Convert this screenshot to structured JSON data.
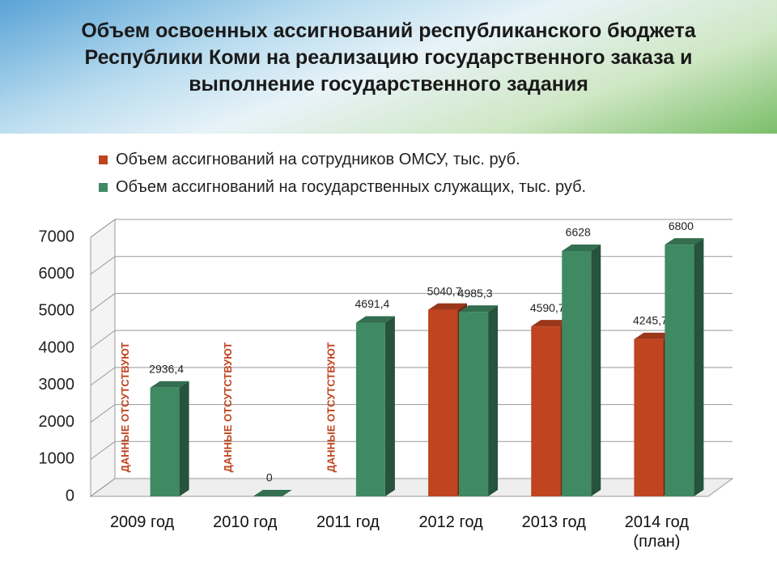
{
  "chart_data": {
    "type": "bar",
    "title": "Объем освоенных ассигнований республиканского бюджета Республики Коми на реализацию государственного заказа и выполнение государственного задания",
    "categories": [
      "2009 год",
      "2010 год",
      "2011 год",
      "2012 год",
      "2013 год",
      "2014 год (план)"
    ],
    "series": [
      {
        "name": "Объем ассигнований на сотрудников ОМСУ, тыс. руб.",
        "color": "#c0441f",
        "values": [
          null,
          null,
          null,
          5040.7,
          4590.7,
          4245.7
        ],
        "value_labels": [
          null,
          null,
          null,
          "5040,7",
          "4590,7",
          "4245,7"
        ]
      },
      {
        "name": "Объем ассигнований на государственных служащих, тыс. руб.",
        "color": "#3f8a63",
        "values": [
          2936.4,
          0,
          4691.4,
          4985.3,
          6628,
          6800
        ],
        "value_labels": [
          "2936,4",
          "0",
          "4691,4",
          "4985,3",
          "6628",
          "6800"
        ]
      }
    ],
    "annotations": [
      "ДАННЫЕ ОТСУТСТВУЮТ",
      "ДАННЫЕ ОТСУТСТВУЮТ",
      "ДАННЫЕ ОТСУТСТВУЮТ"
    ],
    "ylim": [
      0,
      7000
    ],
    "yticks": [
      0,
      1000,
      2000,
      3000,
      4000,
      5000,
      6000,
      7000
    ],
    "grid": true
  }
}
